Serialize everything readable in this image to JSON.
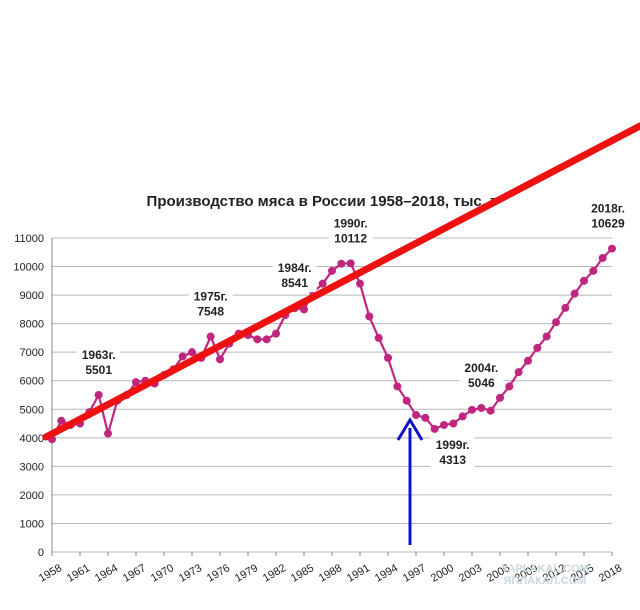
{
  "chart_data": {
    "type": "line",
    "title": "Производство мяса в России 1958–2018, тыс. т",
    "xlim": [
      1958,
      2018
    ],
    "ylim": [
      0,
      11000
    ],
    "y_ticks": [
      "0",
      "1000",
      "2000",
      "3000",
      "4000",
      "5000",
      "6000",
      "7000",
      "8000",
      "9000",
      "10000",
      "11000"
    ],
    "x_ticks": [
      "1958",
      "1961",
      "1964",
      "1967",
      "1970",
      "1973",
      "1976",
      "1979",
      "1982",
      "1985",
      "1988",
      "1991",
      "1994",
      "1997",
      "2000",
      "2003",
      "2006",
      "2009",
      "2012",
      "2015",
      "2018"
    ],
    "grid": true,
    "series": [
      {
        "color": "#c0267f",
        "x": [
          1958,
          1959,
          1960,
          1961,
          1962,
          1963,
          1964,
          1965,
          1966,
          1967,
          1968,
          1969,
          1970,
          1971,
          1972,
          1973,
          1974,
          1975,
          1976,
          1977,
          1978,
          1979,
          1980,
          1981,
          1982,
          1983,
          1984,
          1985,
          1986,
          1987,
          1988,
          1989,
          1990,
          1991,
          1992,
          1993,
          1994,
          1995,
          1996,
          1997,
          1998,
          1999,
          2000,
          2001,
          2002,
          2003,
          2004,
          2005,
          2006,
          2007,
          2008,
          2009,
          2010,
          2011,
          2012,
          2013,
          2014,
          2015,
          2016,
          2017,
          2018
        ],
        "y": [
          3950,
          4600,
          4450,
          4500,
          4900,
          5501,
          4150,
          5300,
          5500,
          5950,
          6000,
          5900,
          6200,
          6400,
          6850,
          7000,
          6800,
          7548,
          6750,
          7300,
          7650,
          7600,
          7450,
          7450,
          7650,
          8300,
          8541,
          8500,
          9100,
          9400,
          9850,
          10100,
          10112,
          9400,
          8250,
          7500,
          6800,
          5800,
          5300,
          4800,
          4700,
          4313,
          4450,
          4500,
          4750,
          4980,
          5046,
          4950,
          5400,
          5800,
          6300,
          6700,
          7150,
          7550,
          8050,
          8550,
          9050,
          9500,
          9850,
          10300,
          10629
        ]
      }
    ],
    "annotations": [
      {
        "year": "1963г.",
        "value": "5501",
        "x": 1963,
        "y": 5501
      },
      {
        "year": "1975г.",
        "value": "7548",
        "x": 1975,
        "y": 7548
      },
      {
        "year": "1984г.",
        "value": "8541",
        "x": 1984,
        "y": 8541
      },
      {
        "year": "1990г.",
        "value": "10112",
        "x": 1990,
        "y": 10112
      },
      {
        "year": "1999г.",
        "value": "4313",
        "x": 1999,
        "y": 4313
      },
      {
        "year": "2004г.",
        "value": "5046",
        "x": 2004,
        "y": 5046
      },
      {
        "year": "2018г.",
        "value": "10629",
        "x": 2018,
        "y": 10629
      }
    ]
  },
  "overlay": {
    "trend_color": "#ee1111",
    "arrow_color": "#1010cc"
  },
  "watermark": {
    "line1": "YAPLAKAL.COM",
    "line2": "ЯПЛАКАЛ.COM"
  }
}
